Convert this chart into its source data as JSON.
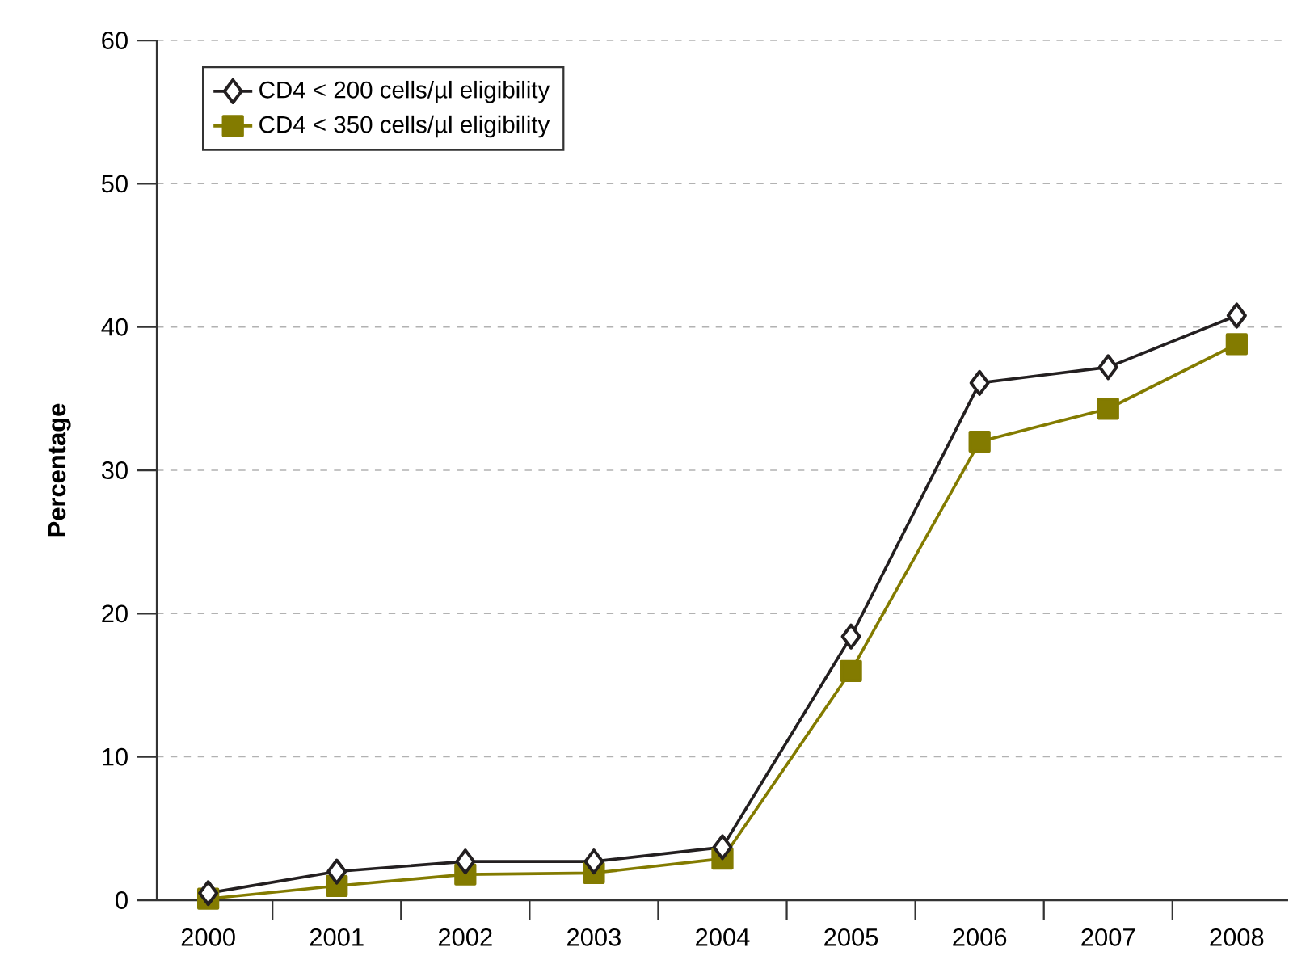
{
  "chart_data": {
    "type": "line",
    "ylabel": "Percentage",
    "categories": [
      "2000",
      "2001",
      "2002",
      "2003",
      "2004",
      "2005",
      "2006",
      "2007",
      "2008"
    ],
    "series": [
      {
        "name": "CD4 < 200 cells/µl eligibility",
        "color": "#231f20",
        "marker": "diamond",
        "values": [
          0.5,
          2.0,
          2.7,
          2.7,
          3.7,
          18.4,
          36.1,
          37.2,
          40.8
        ]
      },
      {
        "name": "CD4 < 350 cells/µl eligibility",
        "color": "#837b00",
        "marker": "square",
        "values": [
          0.1,
          1.0,
          1.8,
          1.9,
          2.9,
          16.0,
          32.0,
          34.3,
          38.8
        ]
      }
    ],
    "ylim": [
      0,
      60
    ],
    "yticks": [
      0,
      10,
      20,
      30,
      40,
      50,
      60
    ],
    "grid": "y",
    "legend": "top left",
    "line_style": "solid"
  }
}
